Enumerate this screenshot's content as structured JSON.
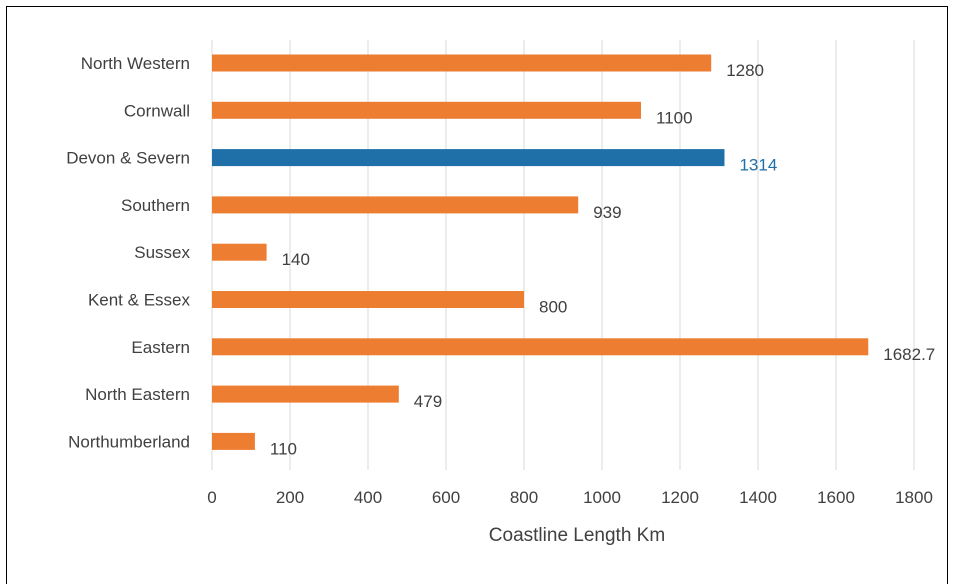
{
  "chart_data": {
    "type": "bar",
    "orientation": "horizontal",
    "categories": [
      "North Western",
      "Cornwall",
      "Devon & Severn",
      "Southern",
      "Sussex",
      "Kent & Essex",
      "Eastern",
      "North Eastern",
      "Northumberland"
    ],
    "values": [
      1280,
      1100,
      1314,
      939,
      140,
      800,
      1682.7,
      479,
      110
    ],
    "value_labels": [
      "1280",
      "1100",
      "1314",
      "939",
      "140",
      "800",
      "1682.7",
      "479",
      "110"
    ],
    "highlight_index": 2,
    "colors": {
      "default_bar": "#ED7D31",
      "highlight_bar": "#1F6FA8",
      "default_label": "#404040",
      "highlight_label": "#1F6FA8",
      "gridline": "#D9D9D9"
    },
    "xlabel": "Coastline Length Km",
    "ylabel": "",
    "title": "",
    "xlim": [
      0,
      1800
    ],
    "xticks": [
      0,
      200,
      400,
      600,
      800,
      1000,
      1200,
      1400,
      1600,
      1800
    ],
    "grid": true,
    "legend": "none"
  }
}
